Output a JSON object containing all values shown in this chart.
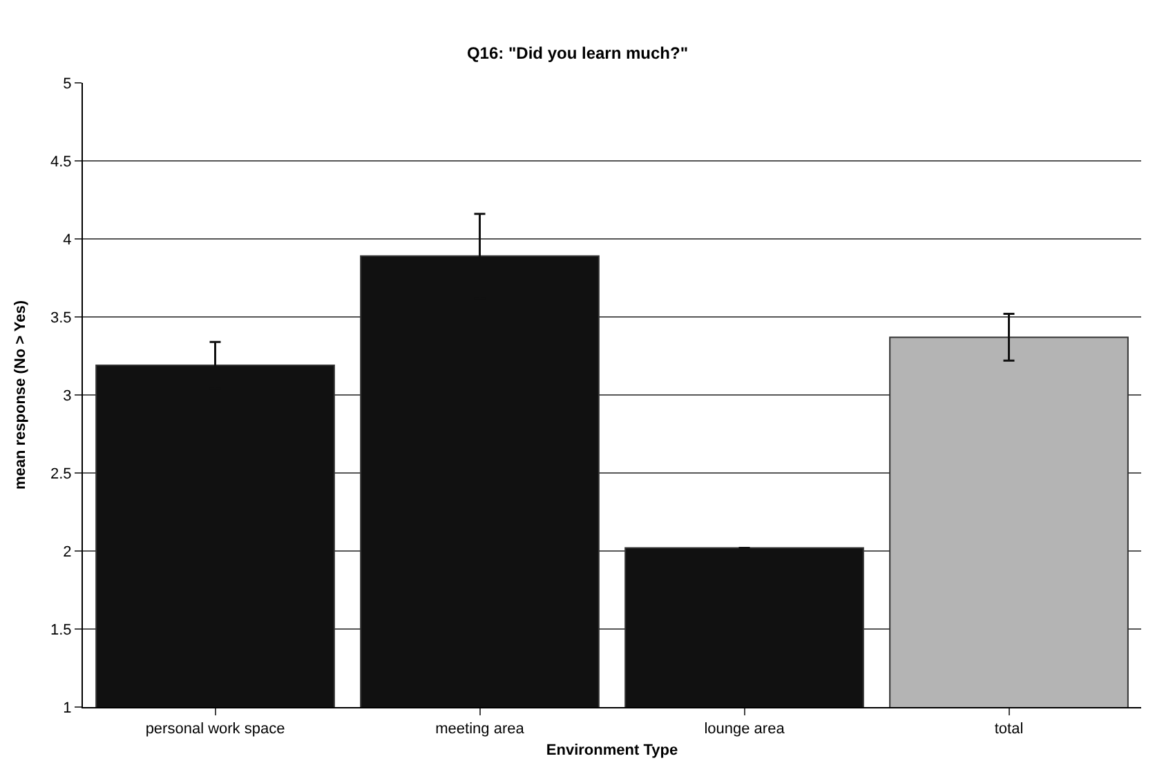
{
  "chart_data": {
    "type": "bar",
    "title": "Q16: \"Did you learn much?\"",
    "xlabel": "Environment Type",
    "ylabel": "mean response (No > Yes)",
    "categories": [
      "personal work space",
      "meeting area",
      "lounge area",
      "total"
    ],
    "values": [
      3.19,
      3.89,
      2.02,
      3.37
    ],
    "colors": [
      "#111111",
      "#111111",
      "#111111",
      "#b4b4b4"
    ],
    "errors": [
      0.15,
      0.27,
      null,
      0.15
    ],
    "ylim": [
      1,
      5
    ],
    "yticks": [
      1,
      1.5,
      2,
      2.5,
      3,
      3.5,
      4,
      4.5,
      5
    ],
    "grid": "y",
    "legend": false
  }
}
